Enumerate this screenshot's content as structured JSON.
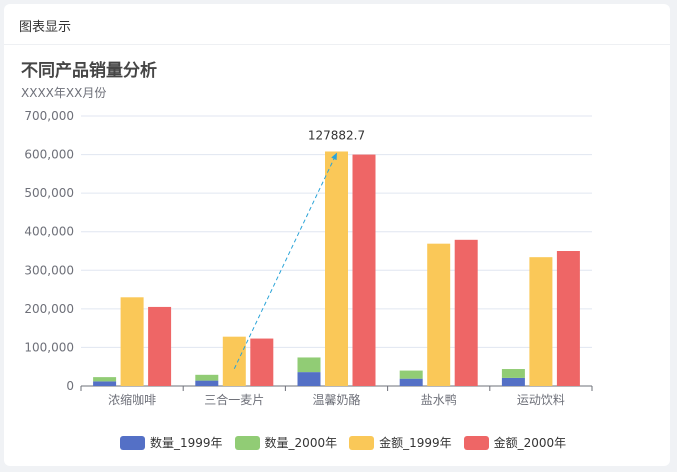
{
  "card": {
    "title": "图表显示"
  },
  "chart_data": {
    "type": "bar",
    "title": "不同产品销量分析",
    "subtitle": "XXXX年XX月份",
    "categories": [
      "浓缩咖啡",
      "三合一麦片",
      "温馨奶酪",
      "盐水鸭",
      "运动饮料"
    ],
    "stacked_group": [
      "数量_1999年",
      "数量_2000年"
    ],
    "series": [
      {
        "name": "数量_1999年",
        "color": "#5470c6",
        "values": [
          12000,
          14000,
          36000,
          19000,
          21000
        ]
      },
      {
        "name": "数量_2000年",
        "color": "#91cc75",
        "values": [
          11000,
          15000,
          38000,
          21000,
          23000
        ]
      },
      {
        "name": "金额_1999年",
        "color": "#fac858",
        "values": [
          230000,
          127882.7,
          608000,
          369000,
          334000
        ]
      },
      {
        "name": "金额_2000年",
        "color": "#ee6666",
        "values": [
          205000,
          123000,
          600000,
          379000,
          350000
        ]
      }
    ],
    "y_ticks": [
      "0",
      "100,000",
      "200,000",
      "300,000",
      "400,000",
      "500,000",
      "600,000",
      "700,000"
    ],
    "ylim": [
      0,
      700000
    ],
    "annotation": {
      "label": "127882.7",
      "from_category": 1,
      "to_category": 2
    },
    "grid": true,
    "legend_position": "bottom"
  }
}
